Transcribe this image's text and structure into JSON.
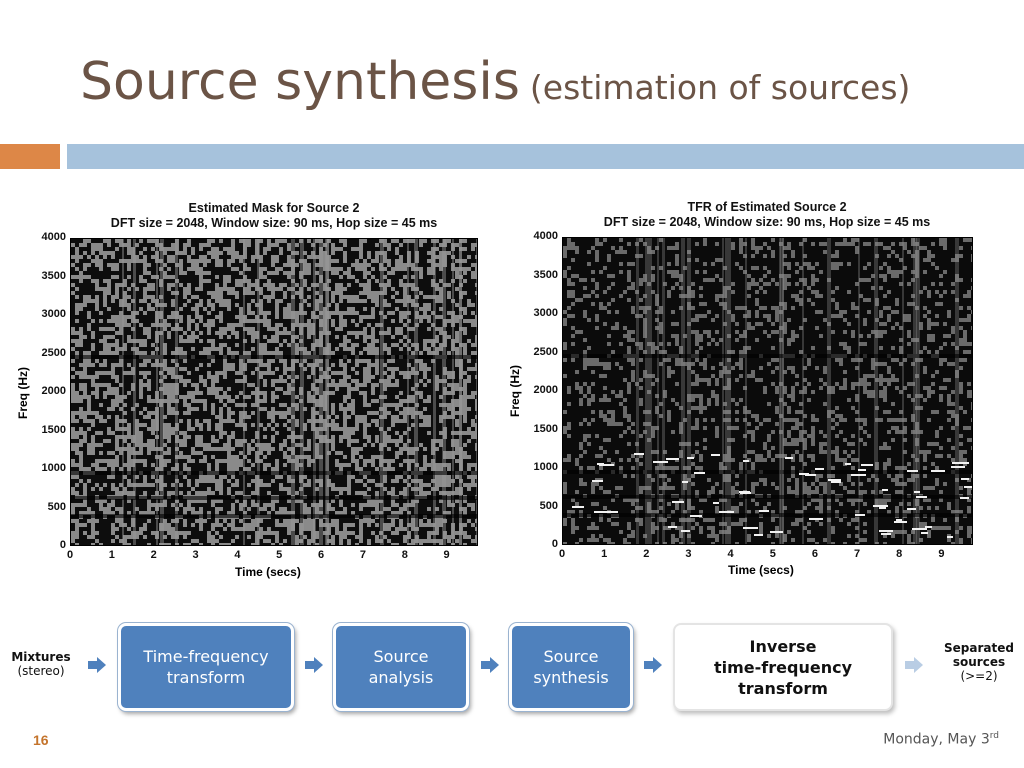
{
  "slide": {
    "title_main": "Source synthesis",
    "title_sub": "(estimation of sources)",
    "page_number": "16",
    "date": "Monday, May 3",
    "date_suffix": "rd"
  },
  "spectrograms": [
    {
      "title_line1": "Estimated Mask for Source 2",
      "title_line2": "DFT size = 2048, Window size: 90 ms, Hop size = 45 ms",
      "xlabel": "Time (secs)",
      "ylabel": "Freq (Hz)",
      "yticks": [
        "4000",
        "3500",
        "3000",
        "2500",
        "2000",
        "1500",
        "1000",
        "500",
        "0"
      ],
      "xticks": [
        "0",
        "1",
        "2",
        "3",
        "4",
        "5",
        "6",
        "7",
        "8",
        "9"
      ]
    },
    {
      "title_line1": "TFR of Estimated Source 2",
      "title_line2": "DFT size = 2048, Window size: 90 ms, Hop size = 45 ms",
      "xlabel": "Time (secs)",
      "ylabel": "Freq (Hz)",
      "yticks": [
        "4000",
        "3500",
        "3000",
        "2500",
        "2000",
        "1500",
        "1000",
        "500",
        "0"
      ],
      "xticks": [
        "0",
        "1",
        "2",
        "3",
        "4",
        "5",
        "6",
        "7",
        "8",
        "9"
      ]
    }
  ],
  "flow": {
    "input_label": "Mixtures",
    "input_sub": "(stereo)",
    "step1_line1": "Time-frequency",
    "step1_line2": "transform",
    "step2_line1": "Source",
    "step2_line2": "analysis",
    "step3_line1": "Source",
    "step3_line2": "synthesis",
    "step4_line1": "Inverse",
    "step4_line2": "time-frequency",
    "step4_line3": "transform",
    "output_line1": "Separated",
    "output_line2": "sources",
    "output_sub": "(>=2)"
  },
  "colors": {
    "title": "#6b5446",
    "accent_orange": "#dd8747",
    "accent_blue": "#a6c2dc",
    "box_blue": "#4f81bd",
    "arrow_blue": "#4f81bd",
    "arrow_light": "#b9cde4"
  }
}
